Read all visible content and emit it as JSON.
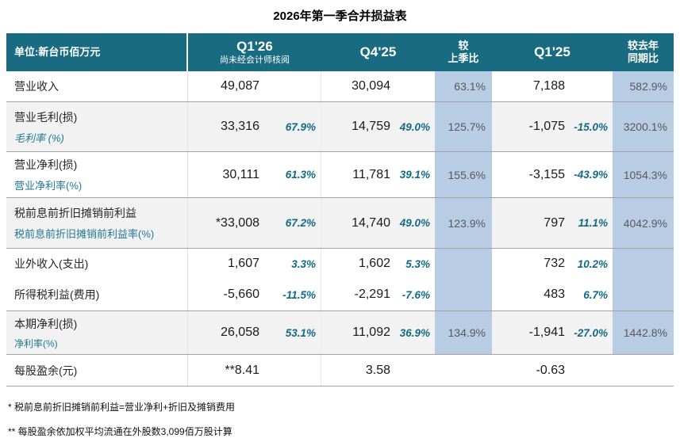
{
  "title": "2026年第一季合并损益表",
  "header": {
    "unit": "单位:新台币佰万元",
    "q126_label": "Q1'26",
    "q126_sub": "尚未经会计师核阅",
    "q425_label": "Q4'25",
    "qoq_line1": "较",
    "qoq_line2": "上季比",
    "q125_label": "Q1'25",
    "yoy_line1": "较去年",
    "yoy_line2": "同期比"
  },
  "colors": {
    "header_bg": "#186B80",
    "band_bg": "#b8cce4",
    "alt_row_bg": "#f2f2f2",
    "teal_text": "#1f7795",
    "pct_text": "#136a84",
    "band_text": "#595959"
  },
  "rows": [
    {
      "label": "营业收入",
      "sub": "",
      "q126": "49,087",
      "q126_pct": "",
      "q425": "30,094",
      "q425_pct": "",
      "qoq": "63.1%",
      "q125": "7,188",
      "q125_pct": "",
      "yoy": "582.9%"
    },
    {
      "label": "营业毛利(损)",
      "sub": "毛利率 (%)",
      "q126": "33,316",
      "q126_pct": "67.9%",
      "q425": "14,759",
      "q425_pct": "49.0%",
      "qoq": "125.7%",
      "q125": "-1,075",
      "q125_pct": "-15.0%",
      "yoy": "3200.1%"
    },
    {
      "label": "营业净利(损)",
      "sub": "营业净利率(%)",
      "q126": "30,111",
      "q126_pct": "61.3%",
      "q425": "11,781",
      "q425_pct": "39.1%",
      "qoq": "155.6%",
      "q125": "-3,155",
      "q125_pct": "-43.9%",
      "yoy": "1054.3%"
    },
    {
      "label": "税前息前折旧摊销前利益",
      "sub": "税前息前折旧摊销前利益率(%)",
      "q126": "*33,008",
      "q126_pct": "67.2%",
      "q425": "14,740",
      "q425_pct": "49.0%",
      "qoq": "123.9%",
      "q125": "797",
      "q125_pct": "11.1%",
      "yoy": "4042.9%"
    },
    {
      "label": "业外收入(支出)",
      "sub": "",
      "q126": "1,607",
      "q126_pct": "3.3%",
      "q425": "1,602",
      "q425_pct": "5.3%",
      "qoq": "",
      "q125": "732",
      "q125_pct": "10.2%",
      "yoy": ""
    },
    {
      "label": "所得税利益(费用)",
      "sub": "",
      "q126": "-5,660",
      "q126_pct": "-11.5%",
      "q425": "-2,291",
      "q425_pct": "-7.6%",
      "qoq": "",
      "q125": "483",
      "q125_pct": "6.7%",
      "yoy": ""
    },
    {
      "label": "本期净利(损)",
      "sub": "净利率(%)",
      "q126": "26,058",
      "q126_pct": "53.1%",
      "q425": "11,092",
      "q425_pct": "36.9%",
      "qoq": "134.9%",
      "q125": "-1,941",
      "q125_pct": "-27.0%",
      "yoy": "1442.8%"
    },
    {
      "label": "每股盈余(元)",
      "sub": "",
      "q126": "**8.41",
      "q126_pct": "",
      "q425": "3.58",
      "q425_pct": "",
      "qoq": "",
      "q125": "-0.63",
      "q125_pct": "",
      "yoy": ""
    }
  ],
  "footnotes": [
    "*  税前息前折旧摊销前利益=营业净利+折旧及摊销费用",
    "**  每股盈余依加权平均流通在外股数3,099佰万股计算"
  ]
}
